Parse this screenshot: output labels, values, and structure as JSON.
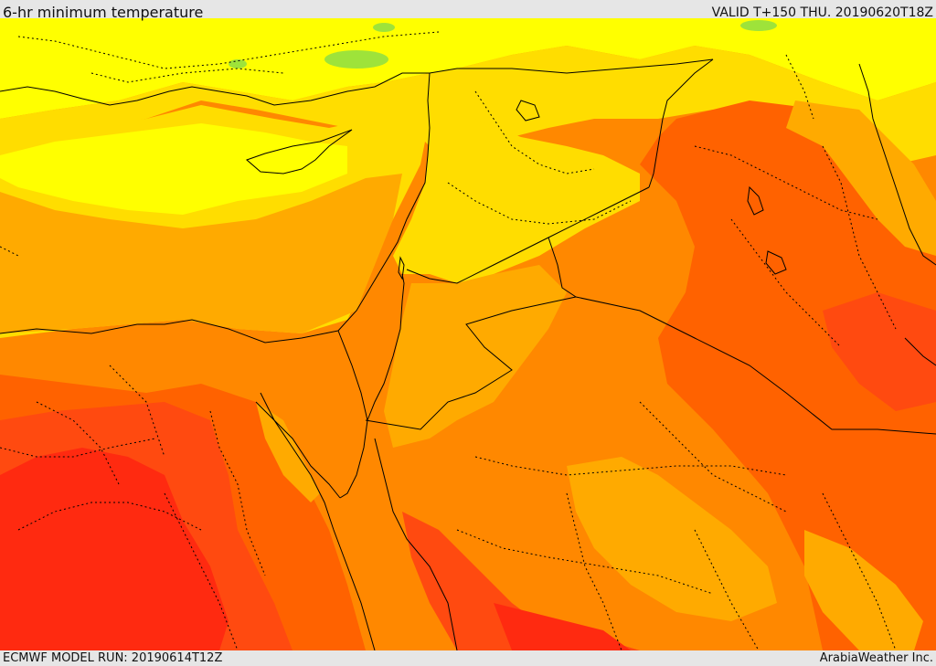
{
  "header": {
    "title": "6-hr minimum temperature",
    "valid": "VALID T+150 THU. 20190620T18Z"
  },
  "footer": {
    "model_run": "ECMWF MODEL RUN: 20190614T12Z",
    "credit": "ArabiaWeather Inc."
  },
  "map": {
    "region": "Eastern Mediterranean and Middle East",
    "palette": {
      "light_green": "#9ee33a",
      "yellow": "#ffff00",
      "gold": "#ffdd00",
      "amber": "#ffaa00",
      "orange": "#ff8800",
      "dark_orange": "#ff6200",
      "red_orange": "#ff4a10",
      "red": "#ff2a10"
    },
    "borders": {
      "country": "solid",
      "province": "dotted",
      "color": "#000000"
    }
  }
}
